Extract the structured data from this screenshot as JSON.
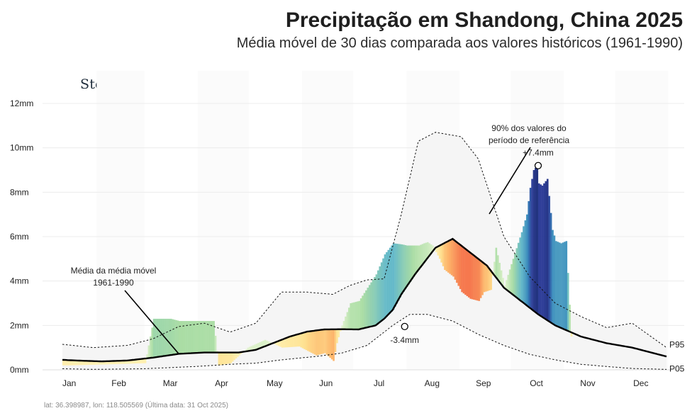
{
  "header": {
    "title": "Precipitação em Shandong, China 2025",
    "subtitle": "Média móvel de 30 dias comparada aos valores históricos (1961-1990)"
  },
  "logo": {
    "text": "StoneX",
    "mark": "®"
  },
  "footer": {
    "text": "lat: 36.398987, lon: 118.505569 (Última data: 31 Oct 2025)"
  },
  "colors": {
    "dry_scale": [
      "#fff4b8",
      "#fee08b",
      "#fdae61",
      "#f46d43",
      "#d73027",
      "#a50026"
    ],
    "wet_scale": [
      "#e6f5d0",
      "#a6dba0",
      "#5fb7c7",
      "#2c7fb8",
      "#253494",
      "#081d58"
    ],
    "historical_band": "#f5f5f5",
    "mean_line": "#000000"
  },
  "chart_data": {
    "type": "area",
    "title": "Precipitação em Shandong, China 2025",
    "subtitle": "Média móvel de 30 dias comparada aos valores históricos (1961-1990)",
    "xlabel": "",
    "ylabel": "",
    "x_unit": "day-of-year",
    "xlim": [
      1,
      365
    ],
    "ylim": [
      0,
      12
    ],
    "y_ticks": [
      "0mm",
      "2mm",
      "4mm",
      "6mm",
      "8mm",
      "10mm",
      "12mm"
    ],
    "months": [
      {
        "label": "Jan",
        "center_day": 16
      },
      {
        "label": "Feb",
        "center_day": 45
      },
      {
        "label": "Mar",
        "center_day": 75
      },
      {
        "label": "Apr",
        "center_day": 105
      },
      {
        "label": "May",
        "center_day": 136
      },
      {
        "label": "Jun",
        "center_day": 166
      },
      {
        "label": "Jul",
        "center_day": 197
      },
      {
        "label": "Aug",
        "center_day": 228
      },
      {
        "label": "Sep",
        "center_day": 258
      },
      {
        "label": "Oct",
        "center_day": 289
      },
      {
        "label": "Nov",
        "center_day": 319
      },
      {
        "label": "Dec",
        "center_day": 350
      }
    ],
    "grid": true,
    "series": [
      {
        "name": "P95",
        "style": "dotted",
        "x": [
          12,
          30,
          50,
          65,
          80,
          95,
          110,
          125,
          140,
          155,
          170,
          180,
          190,
          200,
          210,
          220,
          230,
          245,
          255,
          270,
          285,
          300,
          315,
          330,
          345,
          365
        ],
        "y": [
          1.15,
          1.0,
          1.1,
          1.4,
          1.95,
          2.1,
          1.7,
          2.1,
          3.5,
          3.5,
          3.4,
          3.8,
          4.05,
          4.1,
          7.0,
          10.3,
          10.7,
          10.5,
          9.5,
          6.0,
          4.2,
          3.0,
          2.4,
          1.9,
          2.1,
          1.0
        ]
      },
      {
        "name": "P05",
        "style": "dotted",
        "x": [
          12,
          30,
          60,
          90,
          110,
          125,
          140,
          160,
          175,
          190,
          205,
          215,
          225,
          240,
          255,
          270,
          285,
          300,
          315,
          330,
          345,
          365
        ],
        "y": [
          0.05,
          0.02,
          0.05,
          0.15,
          0.25,
          0.3,
          0.45,
          0.6,
          0.75,
          1.1,
          2.0,
          2.5,
          2.5,
          2.2,
          1.6,
          1.1,
          0.7,
          0.45,
          0.25,
          0.15,
          0.06,
          0.02
        ]
      },
      {
        "name": "Média da média móvel 1961-1990",
        "style": "solid",
        "x": [
          12,
          20,
          35,
          50,
          65,
          80,
          95,
          105,
          115,
          125,
          135,
          145,
          155,
          165,
          175,
          185,
          195,
          200,
          205,
          210,
          218,
          230,
          240,
          250,
          260,
          270,
          280,
          290,
          300,
          315,
          330,
          345,
          365
        ],
        "y": [
          0.45,
          0.42,
          0.38,
          0.42,
          0.55,
          0.72,
          0.78,
          0.78,
          0.78,
          0.9,
          1.2,
          1.5,
          1.72,
          1.82,
          1.83,
          1.82,
          2.0,
          2.3,
          2.7,
          3.4,
          4.3,
          5.5,
          5.9,
          5.3,
          4.7,
          3.7,
          3.1,
          2.5,
          2.0,
          1.5,
          1.2,
          1.0,
          0.6
        ]
      },
      {
        "name": "2025",
        "style": "anomaly-bars",
        "x": [
          15,
          40,
          60,
          65,
          70,
          75,
          80,
          85,
          90,
          95,
          100,
          103,
          110,
          120,
          130,
          140,
          150,
          160,
          165,
          170,
          172,
          175,
          180,
          185,
          190,
          195,
          200,
          205,
          210,
          213,
          216,
          220,
          223,
          225,
          228,
          232,
          235,
          240,
          245,
          250,
          255,
          258,
          262,
          265,
          270,
          275,
          280,
          283,
          285,
          287,
          289,
          290,
          292,
          295,
          298,
          300,
          303,
          306,
          309
        ],
        "y": [
          0.2,
          0.25,
          0.3,
          2.3,
          2.3,
          2.3,
          2.2,
          2.2,
          2.2,
          2.2,
          2.2,
          0.2,
          0.3,
          1.0,
          1.35,
          1.0,
          1.05,
          0.65,
          0.75,
          0.4,
          1.2,
          2.0,
          3.0,
          3.1,
          3.7,
          4.3,
          5.2,
          5.7,
          5.65,
          5.6,
          5.6,
          5.6,
          5.7,
          5.75,
          5.6,
          5.0,
          4.5,
          4.2,
          3.5,
          3.2,
          3.1,
          3.5,
          3.6,
          5.5,
          3.8,
          5.0,
          6.2,
          7.0,
          8.2,
          9.0,
          9.2,
          8.4,
          8.3,
          8.6,
          6.3,
          5.8,
          5.7,
          5.8,
          1.5
        ]
      }
    ],
    "labels": {
      "p95": "P95",
      "p05": "P05",
      "mean_annotation_line1": "Média da média móvel",
      "mean_annotation_line2": "1961-1990",
      "pct_annotation_line1": "90% dos valores do",
      "pct_annotation_line2": "período de referência"
    },
    "annotations": [
      {
        "label": "-3.4mm",
        "x": 212,
        "y": 1.95
      },
      {
        "label": "+7.4mm",
        "x": 290,
        "y": 9.2
      }
    ]
  }
}
